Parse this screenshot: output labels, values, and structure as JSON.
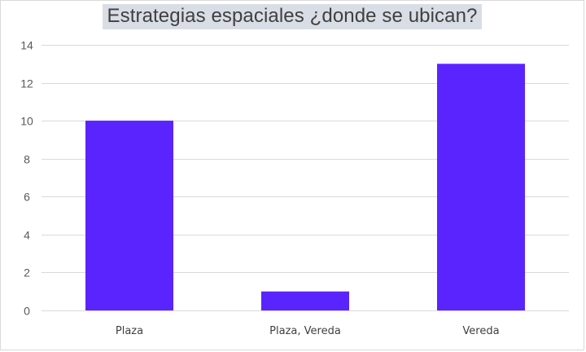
{
  "colors": {
    "bar": "#5a24ff",
    "grid": "#d9d9d9",
    "title_bg": "#d9dde6",
    "text": "#404040"
  },
  "chart_data": {
    "type": "bar",
    "title": "Estrategias espaciales ¿donde se ubican?",
    "xlabel": "",
    "ylabel": "",
    "categories": [
      "Plaza",
      "Plaza, Vereda",
      "Vereda"
    ],
    "values": [
      10,
      1,
      13
    ],
    "ylim": [
      0,
      14
    ],
    "yticks": [
      0,
      2,
      4,
      6,
      8,
      10,
      12,
      14
    ],
    "grid": true,
    "legend": "none"
  }
}
